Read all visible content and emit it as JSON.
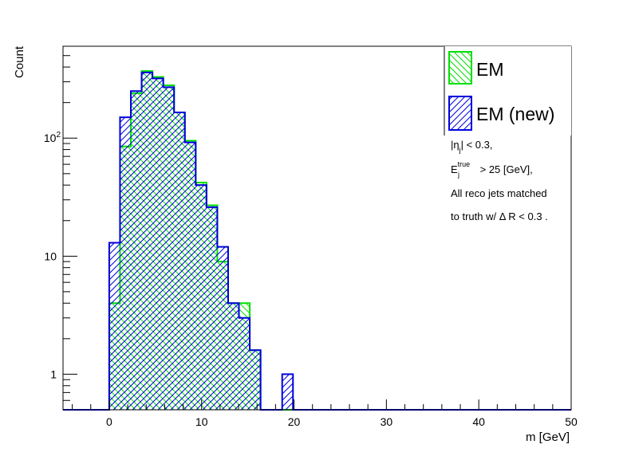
{
  "chart_data": {
    "type": "histogram",
    "xlabel": "m [GeV]",
    "ylabel": "Count",
    "xlim": [
      -5,
      50
    ],
    "ylim": [
      0.5,
      600
    ],
    "yscale": "log",
    "grid": false,
    "legend_position": "top-right",
    "bin_width": 1.17,
    "bins_start": 0,
    "x_ticks": [
      "0",
      "10",
      "20",
      "30",
      "40",
      "50"
    ],
    "y_ticks": [
      {
        "value": 1,
        "label": "1"
      },
      {
        "value": 10,
        "label": "10"
      },
      {
        "value": 100,
        "label": "10",
        "exp": "2"
      }
    ],
    "series": [
      {
        "name": "EM",
        "color": "#00e000",
        "hatch": "backslash",
        "values": [
          4,
          85,
          240,
          370,
          330,
          280,
          165,
          95,
          42,
          27,
          9,
          4,
          4,
          1.6,
          0,
          0,
          0
        ]
      },
      {
        "name": "EM (new)",
        "color": "#0000dd",
        "hatch": "slash",
        "values": [
          13,
          150,
          250,
          360,
          320,
          270,
          165,
          92,
          40,
          26,
          12,
          4,
          3,
          1.6,
          0,
          0,
          1
        ]
      }
    ],
    "annotations": {
      "eta_cut": {
        "prefix": "|η",
        "sub": "j",
        "suffix": "| < 0.3,"
      },
      "et_cut": {
        "prefix": "E",
        "sup": "true",
        "sub": "j",
        "suffix": " > 25 [GeV],"
      },
      "match_line1": "All reco jets matched",
      "match_line2": "to truth w/ Δ R < 0.3 ."
    }
  }
}
